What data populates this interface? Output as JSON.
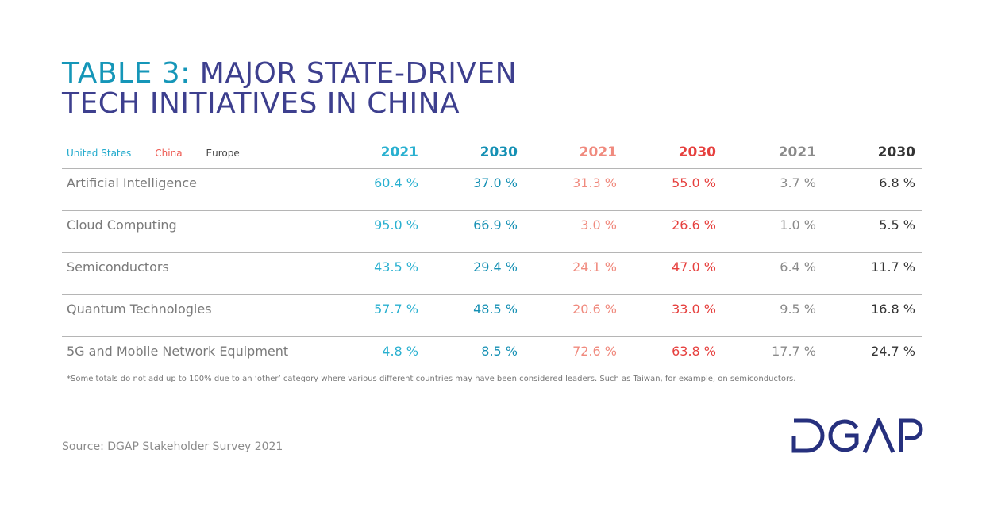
{
  "title": {
    "lead": "TABLE 3:",
    "rest_line1": " MAJOR STATE-DRIVEN",
    "line2": "TECH INITIATIVES IN CHINA"
  },
  "legend": [
    {
      "label": "United States",
      "color": "#1fa9cc"
    },
    {
      "label": "China",
      "color": "#ee5a52"
    },
    {
      "label": "Europe",
      "color": "#444444"
    }
  ],
  "columns": [
    {
      "label": "2021",
      "color": "#29b0d0"
    },
    {
      "label": "2030",
      "color": "#1590b4"
    },
    {
      "label": "2021",
      "color": "#f08a7e"
    },
    {
      "label": "2030",
      "color": "#e6403e"
    },
    {
      "label": "2021",
      "color": "#8a8a8a"
    },
    {
      "label": "2030",
      "color": "#333333"
    }
  ],
  "rows": [
    {
      "label": "Artificial Intelligence",
      "values": [
        "60.4 %",
        "37.0 %",
        "31.3 %",
        "55.0 %",
        "3.7 %",
        "6.8 %"
      ]
    },
    {
      "label": "Cloud Computing",
      "values": [
        "95.0 %",
        "66.9 %",
        "3.0 %",
        "26.6 %",
        "1.0 %",
        "5.5 %"
      ]
    },
    {
      "label": "Semiconductors",
      "values": [
        "43.5 %",
        "29.4 %",
        "24.1 %",
        "47.0 %",
        "6.4 %",
        "11.7 %"
      ]
    },
    {
      "label": "Quantum Technologies",
      "values": [
        "57.7 %",
        "48.5 %",
        "20.6 %",
        "33.0 %",
        "9.5 %",
        "16.8 %"
      ]
    },
    {
      "label": "5G and Mobile Network Equipment",
      "values": [
        "4.8 %",
        "8.5 %",
        "72.6 %",
        "63.8 %",
        "17.7 %",
        "24.7 %"
      ]
    }
  ],
  "footnote": "*Some totals do not add up to 100% due to an ‘other’ category where various different countries may have been considered leaders. Such as Taiwan, for example, on semiconductors.",
  "source": "Source: DGAP Stakeholder Survey 2021",
  "logo": "DGAP",
  "chart_data": {
    "type": "table",
    "title": "TABLE 3: MAJOR STATE-DRIVEN TECH INITIATIVES IN CHINA",
    "groups": [
      "United States",
      "China",
      "Europe"
    ],
    "years": [
      "2021",
      "2030"
    ]
  }
}
